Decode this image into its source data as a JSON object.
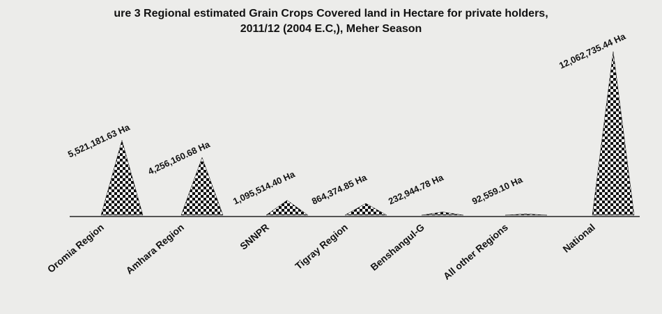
{
  "chart_data": {
    "type": "pyramid",
    "title": "ure 3 Regional estimated Grain Crops Covered land in Hectare for private holders,",
    "subtitle": "2011/12 (2004 E.C,), Meher Season",
    "categories": [
      "Oromia Region",
      "Amhara Region",
      "SNNPR",
      "Tigray  Region",
      "Benshangul-G",
      "All other Regions",
      "National"
    ],
    "values": [
      5521181.63,
      4256160.68,
      1095514.4,
      864374.85,
      232944.78,
      92559.1,
      12062735.44
    ],
    "value_labels": [
      "5,521,181.63 Ha",
      "4,256,160.68 Ha",
      "1,095,514.40 Ha",
      "864,374.85 Ha",
      "232,944.78 Ha",
      "92,559.10 Ha",
      "12,062,735.44 Ha"
    ],
    "color": "#111111"
  }
}
